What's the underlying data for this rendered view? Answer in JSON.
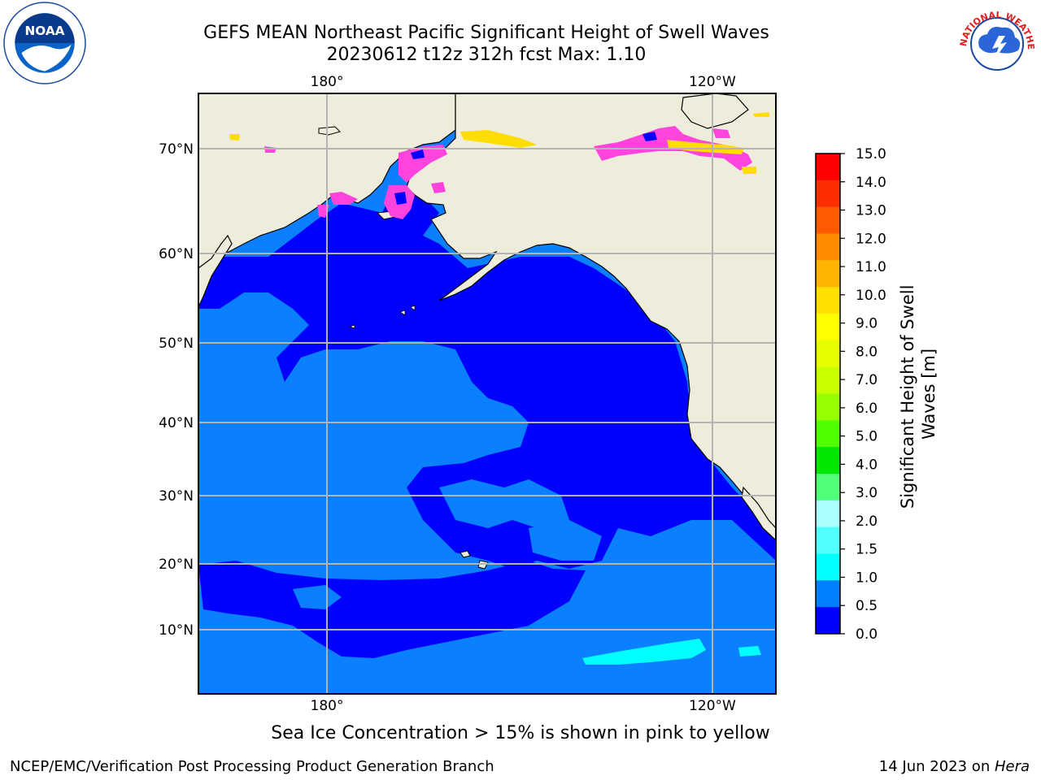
{
  "title_line1": "GEFS MEAN Northeast Pacific Significant Height of Swell Waves",
  "title_line2": "20230612 t12z 312h fcst   Max: 1.10",
  "map": {
    "lon_labels_top": [
      "180°",
      "120°W"
    ],
    "lon_labels_bottom": [
      "180°",
      "120°W"
    ],
    "lat_labels": [
      "70°N",
      "60°N",
      "50°N",
      "40°N",
      "30°N",
      "20°N",
      "10°N"
    ]
  },
  "colorbar": {
    "label": "Significant Height of Swell Waves [m]",
    "label_line1": "Significant Height of Swell",
    "label_line2": "Waves [m]",
    "ticks": [
      "15.0",
      "14.0",
      "13.0",
      "12.0",
      "11.0",
      "10.0",
      "9.0",
      "8.0",
      "7.0",
      "6.0",
      "5.0",
      "4.0",
      "3.0",
      "2.0",
      "1.5",
      "1.0",
      "0.5",
      "0.0"
    ],
    "colors_top_to_bottom": [
      "#ff0000",
      "#ff2e00",
      "#ff5a00",
      "#ff8a00",
      "#ffb400",
      "#ffe000",
      "#ffff00",
      "#e6ff00",
      "#c8ff00",
      "#96ff00",
      "#50ff00",
      "#00e600",
      "#50ff78",
      "#aaffff",
      "#50ffff",
      "#00ffff",
      "#0080ff",
      "#0000ff"
    ]
  },
  "colors": {
    "land": "#eeeddc",
    "ocean_light": "#0a80ff",
    "ocean_dark": "#0000ff",
    "ice_pink": "#ff44dd",
    "ice_yellow": "#ffdd00",
    "grid": "#b4b4b4"
  },
  "footnote": "Sea Ice Concentration > 15% is shown in pink to yellow",
  "footer_left": "NCEP/EMC/Verification Post Processing Product Generation Branch",
  "footer_right_prefix": "14 Jun 2023 on ",
  "footer_right_machine": "Hera",
  "logo_noaa_text": "NOAA",
  "logo_nws_text": "NATIONAL WEATHER SERVICE"
}
